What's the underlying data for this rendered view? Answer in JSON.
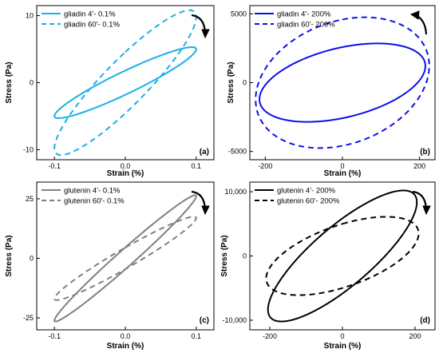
{
  "chart_data": [
    {
      "type": "line",
      "panel_label": "(a)",
      "xlabel": "Strain (%)",
      "ylabel": "Stress (Pa)",
      "xlim": [
        -0.125,
        0.125
      ],
      "ylim": [
        -11.5,
        11.5
      ],
      "xticks": [
        -0.1,
        0.0,
        0.1
      ],
      "xtick_labels": [
        "-0.1",
        "0.0",
        "0.1"
      ],
      "yticks": [
        -10,
        0,
        10
      ],
      "ytick_labels": [
        "-10",
        "0",
        "10"
      ],
      "legend_position": "top-left",
      "series": [
        {
          "name": "gliadin 4'- 0.1%",
          "style": "solid",
          "color": "#1ab0e8",
          "amp_strain": 0.1,
          "amp_stress": 5.3,
          "phase_deg": 20
        },
        {
          "name": "gliadin 60'- 0.1%",
          "style": "dashed",
          "color": "#1ab0e8",
          "amp_strain": 0.1,
          "amp_stress": 10.8,
          "phase_deg": 25
        }
      ],
      "arrow": "clockwise"
    },
    {
      "type": "line",
      "panel_label": "(b)",
      "xlabel": "Strain (%)",
      "ylabel": "Stress (Pa)",
      "xlim": [
        -240,
        240
      ],
      "ylim": [
        -5600,
        5600
      ],
      "xticks": [
        -200,
        0,
        200
      ],
      "xtick_labels": [
        "-200",
        "0",
        "200"
      ],
      "yticks": [
        -5000,
        0,
        5000
      ],
      "ytick_labels": [
        "-5000",
        "0",
        "5000"
      ],
      "legend_position": "top-left",
      "series": [
        {
          "name": "gliadin 4'- 200%",
          "style": "solid",
          "color": "#0c10e8",
          "amp_strain": 215,
          "amp_stress": 2850,
          "phase_deg": 65
        },
        {
          "name": "gliadin 60'- 200%",
          "style": "dashed",
          "color": "#0c10e8",
          "amp_strain": 225,
          "amp_stress": 4750,
          "phase_deg": 75
        }
      ],
      "arrow": "counterclockwise"
    },
    {
      "type": "line",
      "panel_label": "(c)",
      "xlabel": "Strain (%)",
      "ylabel": "Stress (Pa)",
      "xlim": [
        -0.125,
        0.125
      ],
      "ylim": [
        -30,
        32
      ],
      "xticks": [
        -0.1,
        0.0,
        0.1
      ],
      "xtick_labels": [
        "-0.1",
        "0.0",
        "0.1"
      ],
      "yticks": [
        -25,
        0,
        25
      ],
      "ytick_labels": [
        "-25",
        "0",
        "25"
      ],
      "legend_position": "top-left",
      "series": [
        {
          "name": "glutenin 4'- 0.1%",
          "style": "solid",
          "color": "#808080",
          "amp_strain": 0.1,
          "amp_stress": 26.5,
          "phase_deg": 10
        },
        {
          "name": "glutenin 60'- 0.1%",
          "style": "dashed",
          "color": "#808080",
          "amp_strain": 0.1,
          "amp_stress": 17.5,
          "phase_deg": 15
        }
      ],
      "arrow": "clockwise"
    },
    {
      "type": "line",
      "panel_label": "(d)",
      "xlabel": "Strain (%)",
      "ylabel": "Stress (Pa)",
      "xlim": [
        -255,
        255
      ],
      "ylim": [
        -11500,
        11500
      ],
      "xticks": [
        -200,
        0,
        200
      ],
      "xtick_labels": [
        "-200",
        "0",
        "200"
      ],
      "yticks": [
        -10000,
        0,
        10000
      ],
      "ytick_labels": [
        "-10,000",
        "0",
        "10,000"
      ],
      "legend_position": "top-left",
      "series": [
        {
          "name": "glutenin 4'- 200%",
          "style": "solid",
          "color": "#000000",
          "amp_strain": 205,
          "amp_stress": 10200,
          "phase_deg": 35
        },
        {
          "name": "glutenin 60'- 200%",
          "style": "dashed",
          "color": "#000000",
          "amp_strain": 210,
          "amp_stress": 6100,
          "phase_deg": 55
        }
      ],
      "arrow": "clockwise"
    }
  ]
}
